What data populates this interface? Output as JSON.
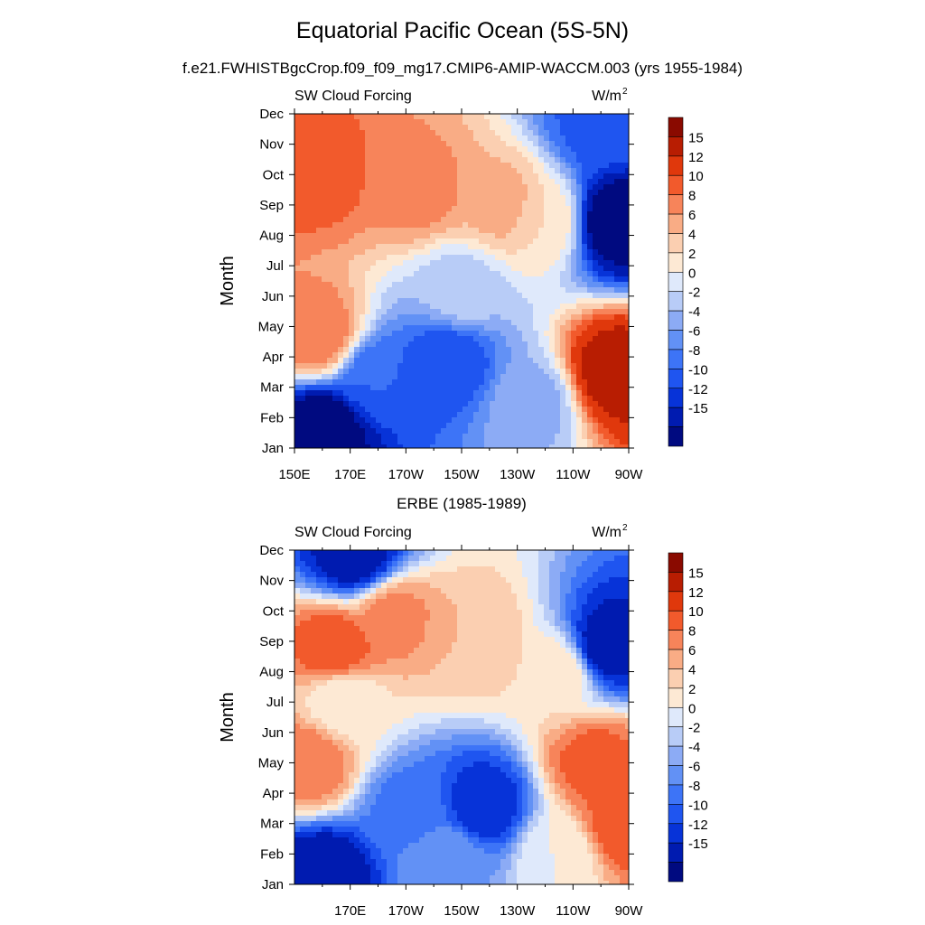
{
  "header": {
    "title": "Equatorial Pacific Ocean (5S-5N)",
    "subtitle": "f.e21.FWHISTBgcCrop.f09_f09_mg17.CMIP6-AMIP-WACCM.003 (yrs 1955-1984)"
  },
  "colors": {
    "palette": [
      "#000a80",
      "#001bb0",
      "#0733d8",
      "#1f55f0",
      "#3d74f7",
      "#6291f5",
      "#8cabf5",
      "#b8ccf7",
      "#dfe9fb",
      "#fde9d4",
      "#fbcfb1",
      "#f9ac85",
      "#f7845a",
      "#f25a2c",
      "#e0380c",
      "#b81d02",
      "#8a0a00"
    ]
  },
  "chart_data": [
    {
      "type": "contour",
      "name": "model",
      "left_label": "SW Cloud Forcing",
      "right_label": "W/m",
      "right_label_sup": "2",
      "ylabel": "Month",
      "x_ticks": [
        "150E",
        "170E",
        "170W",
        "150W",
        "130W",
        "110W",
        "90W"
      ],
      "y_ticks": [
        "Jan",
        "Feb",
        "Mar",
        "Apr",
        "May",
        "Jun",
        "Jul",
        "Aug",
        "Sep",
        "Oct",
        "Nov",
        "Dec"
      ],
      "xlim_deg_east": [
        150,
        270
      ],
      "levels": [
        -15,
        -12,
        -10,
        -8,
        -6,
        -4,
        -2,
        0,
        2,
        4,
        6,
        8,
        10,
        12,
        15
      ],
      "colorbar_labels": [
        "15",
        "12",
        "10",
        "8",
        "6",
        "4",
        "2",
        "0",
        "-2",
        "-4",
        "-6",
        "-8",
        "-10",
        "-12",
        "-15"
      ],
      "features": [
        {
          "lon": 158,
          "month": 10.0,
          "value": 11
        },
        {
          "lon": 195,
          "month": 9.5,
          "value": 9
        },
        {
          "lon": 225,
          "month": 9.0,
          "value": 7
        },
        {
          "lon": 240,
          "month": 8.5,
          "value": 4
        },
        {
          "lon": 265,
          "month": 8.5,
          "value": -18
        },
        {
          "lon": 260,
          "month": 11.5,
          "value": -9
        },
        {
          "lon": 158,
          "month": 4.7,
          "value": 10
        },
        {
          "lon": 205,
          "month": 3.8,
          "value": -10
        },
        {
          "lon": 180,
          "month": 3.3,
          "value": -8
        },
        {
          "lon": 160,
          "month": 1.6,
          "value": -18
        },
        {
          "lon": 265,
          "month": 3.5,
          "value": 17
        },
        {
          "lon": 210,
          "month": 6.2,
          "value": -1
        },
        {
          "lon": 235,
          "month": 2.5,
          "value": -3
        }
      ]
    },
    {
      "type": "contour",
      "name": "ERBE",
      "panel_title": "ERBE (1985-1989)",
      "left_label": "SW Cloud Forcing",
      "right_label": "W/m",
      "right_label_sup": "2",
      "ylabel": "Month",
      "x_ticks": [
        "170E",
        "170W",
        "150W",
        "130W",
        "110W",
        "90W"
      ],
      "y_ticks": [
        "Jan",
        "Feb",
        "Mar",
        "Apr",
        "May",
        "Jun",
        "Jul",
        "Aug",
        "Sep",
        "Oct",
        "Nov",
        "Dec"
      ],
      "xlim_deg_east": [
        150,
        270
      ],
      "levels": [
        -15,
        -12,
        -10,
        -8,
        -6,
        -4,
        -2,
        0,
        2,
        4,
        6,
        8,
        10,
        12,
        15
      ],
      "colorbar_labels": [
        "15",
        "12",
        "10",
        "8",
        "6",
        "4",
        "2",
        "0",
        "-2",
        "-4",
        "-6",
        "-8",
        "-10",
        "-12",
        "-15"
      ],
      "features": [
        {
          "lon": 165,
          "month": 8.8,
          "value": 12
        },
        {
          "lon": 185,
          "month": 9.8,
          "value": 9
        },
        {
          "lon": 215,
          "month": 9.0,
          "value": 6
        },
        {
          "lon": 245,
          "month": 8.0,
          "value": 4
        },
        {
          "lon": 262,
          "month": 8.8,
          "value": -14
        },
        {
          "lon": 172,
          "month": 11.8,
          "value": -14
        },
        {
          "lon": 155,
          "month": 5.0,
          "value": 10
        },
        {
          "lon": 168,
          "month": 7.0,
          "value": 2
        },
        {
          "lon": 218,
          "month": 3.6,
          "value": -12
        },
        {
          "lon": 192,
          "month": 3.5,
          "value": -7
        },
        {
          "lon": 258,
          "month": 5.0,
          "value": 11
        },
        {
          "lon": 268,
          "month": 3.0,
          "value": 12
        },
        {
          "lon": 160,
          "month": 1.3,
          "value": -15
        },
        {
          "lon": 205,
          "month": 1.8,
          "value": -4
        },
        {
          "lon": 245,
          "month": 2.0,
          "value": 2
        }
      ]
    }
  ]
}
